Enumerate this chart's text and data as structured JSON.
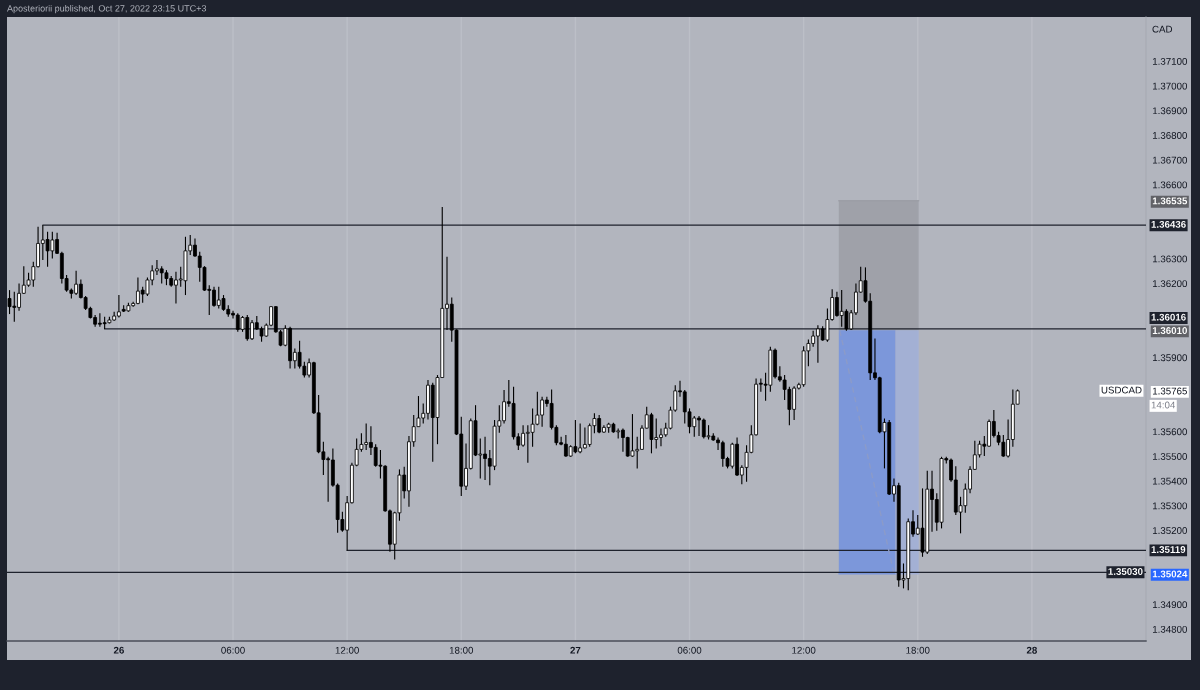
{
  "chart_data": {
    "type": "candlestick",
    "title": "Aposteriorii published, Oct 27, 2022 23:15 UTC+3",
    "ylabel": "CAD",
    "x": [
      "2022-10-25T18:15",
      "2022-10-25T18:30",
      "2022-10-25T18:45",
      "2022-10-25T19:00",
      "2022-10-25T19:15",
      "2022-10-25T19:30",
      "2022-10-25T19:45",
      "2022-10-25T20:00",
      "2022-10-25T20:15",
      "2022-10-25T20:30",
      "2022-10-25T20:45",
      "2022-10-25T21:00",
      "2022-10-25T21:15",
      "2022-10-25T21:30",
      "2022-10-25T21:45",
      "2022-10-25T22:00",
      "2022-10-25T22:15",
      "2022-10-25T22:30",
      "2022-10-25T22:45",
      "2022-10-25T23:00",
      "2022-10-25T23:15",
      "2022-10-25T23:30",
      "2022-10-25T23:45",
      "2022-10-26T00:00",
      "2022-10-26T00:15",
      "2022-10-26T00:30",
      "2022-10-26T00:45",
      "2022-10-26T01:00",
      "2022-10-26T01:15",
      "2022-10-26T01:30",
      "2022-10-26T01:45",
      "2022-10-26T02:00",
      "2022-10-26T02:15",
      "2022-10-26T02:30",
      "2022-10-26T02:45",
      "2022-10-26T03:00",
      "2022-10-26T03:15",
      "2022-10-26T03:30",
      "2022-10-26T03:45",
      "2022-10-26T04:00",
      "2022-10-26T04:15",
      "2022-10-26T04:30",
      "2022-10-26T04:45",
      "2022-10-26T05:00",
      "2022-10-26T05:15",
      "2022-10-26T05:30",
      "2022-10-26T05:45",
      "2022-10-26T06:00",
      "2022-10-26T06:15",
      "2022-10-26T06:30",
      "2022-10-26T06:45",
      "2022-10-26T07:00",
      "2022-10-26T07:15",
      "2022-10-26T07:30",
      "2022-10-26T07:45",
      "2022-10-26T08:00",
      "2022-10-26T08:15",
      "2022-10-26T08:30",
      "2022-10-26T08:45",
      "2022-10-26T09:00",
      "2022-10-26T09:15",
      "2022-10-26T09:30",
      "2022-10-26T09:45",
      "2022-10-26T10:00",
      "2022-10-26T10:15",
      "2022-10-26T10:30",
      "2022-10-26T10:45",
      "2022-10-26T11:00",
      "2022-10-26T11:15",
      "2022-10-26T11:30",
      "2022-10-26T11:45",
      "2022-10-26T12:00",
      "2022-10-26T12:15",
      "2022-10-26T12:30",
      "2022-10-26T12:45",
      "2022-10-26T13:00",
      "2022-10-26T13:15",
      "2022-10-26T13:30",
      "2022-10-26T13:45",
      "2022-10-26T14:00",
      "2022-10-26T14:15",
      "2022-10-26T14:30",
      "2022-10-26T14:45",
      "2022-10-26T15:00",
      "2022-10-26T15:15",
      "2022-10-26T15:30",
      "2022-10-26T15:45",
      "2022-10-26T16:00",
      "2022-10-26T16:15",
      "2022-10-26T16:30",
      "2022-10-26T16:45",
      "2022-10-26T17:00",
      "2022-10-26T17:15",
      "2022-10-26T17:30",
      "2022-10-26T17:45",
      "2022-10-26T18:00",
      "2022-10-26T18:15",
      "2022-10-26T18:30",
      "2022-10-26T18:45",
      "2022-10-26T19:00",
      "2022-10-26T19:15",
      "2022-10-26T19:30",
      "2022-10-26T19:45",
      "2022-10-26T20:00",
      "2022-10-26T20:15",
      "2022-10-26T20:30",
      "2022-10-26T20:45",
      "2022-10-26T21:00",
      "2022-10-26T21:15",
      "2022-10-26T21:30",
      "2022-10-26T21:45",
      "2022-10-26T22:00",
      "2022-10-26T22:15",
      "2022-10-26T22:30",
      "2022-10-26T22:45",
      "2022-10-26T23:00",
      "2022-10-26T23:15",
      "2022-10-26T23:30",
      "2022-10-26T23:45",
      "2022-10-27T00:00",
      "2022-10-27T00:15",
      "2022-10-27T00:30",
      "2022-10-27T00:45",
      "2022-10-27T01:00",
      "2022-10-27T01:15",
      "2022-10-27T01:30",
      "2022-10-27T01:45",
      "2022-10-27T02:00",
      "2022-10-27T02:15",
      "2022-10-27T02:30",
      "2022-10-27T02:45",
      "2022-10-27T03:00",
      "2022-10-27T03:15",
      "2022-10-27T03:30",
      "2022-10-27T03:45",
      "2022-10-27T04:00",
      "2022-10-27T04:15",
      "2022-10-27T04:30",
      "2022-10-27T04:45",
      "2022-10-27T05:00",
      "2022-10-27T05:15",
      "2022-10-27T05:30",
      "2022-10-27T05:45",
      "2022-10-27T06:00",
      "2022-10-27T06:15",
      "2022-10-27T06:30",
      "2022-10-27T06:45",
      "2022-10-27T07:00",
      "2022-10-27T07:15",
      "2022-10-27T07:30",
      "2022-10-27T07:45",
      "2022-10-27T08:00",
      "2022-10-27T08:15",
      "2022-10-27T08:30",
      "2022-10-27T08:45",
      "2022-10-27T09:00",
      "2022-10-27T09:15",
      "2022-10-27T09:30",
      "2022-10-27T09:45",
      "2022-10-27T10:00",
      "2022-10-27T10:15",
      "2022-10-27T10:30",
      "2022-10-27T10:45",
      "2022-10-27T11:00",
      "2022-10-27T11:15",
      "2022-10-27T11:30",
      "2022-10-27T11:45",
      "2022-10-27T12:00",
      "2022-10-27T12:15",
      "2022-10-27T12:30",
      "2022-10-27T12:45",
      "2022-10-27T13:00",
      "2022-10-27T13:15",
      "2022-10-27T13:30",
      "2022-10-27T13:45",
      "2022-10-27T14:00",
      "2022-10-27T14:15",
      "2022-10-27T14:30",
      "2022-10-27T14:45",
      "2022-10-27T15:00",
      "2022-10-27T15:15",
      "2022-10-27T15:30",
      "2022-10-27T15:45",
      "2022-10-27T16:00",
      "2022-10-27T16:15",
      "2022-10-27T16:30",
      "2022-10-27T16:45",
      "2022-10-27T17:00",
      "2022-10-27T17:15",
      "2022-10-27T17:30",
      "2022-10-27T17:45",
      "2022-10-27T18:00",
      "2022-10-27T18:15",
      "2022-10-27T18:30",
      "2022-10-27T18:45",
      "2022-10-27T19:00",
      "2022-10-27T19:15",
      "2022-10-27T19:30",
      "2022-10-27T19:45",
      "2022-10-27T20:00",
      "2022-10-27T20:15",
      "2022-10-27T20:30",
      "2022-10-27T20:45",
      "2022-10-27T21:00",
      "2022-10-27T21:15",
      "2022-10-27T21:30",
      "2022-10-27T21:45",
      "2022-10-27T22:00",
      "2022-10-27T22:15",
      "2022-10-27T22:30",
      "2022-10-27T22:45",
      "2022-10-27T23:00",
      "2022-10-27T23:15"
    ],
    "ohlc": [
      [
        1.36139,
        1.36173,
        1.36076,
        1.36106
      ],
      [
        1.36108,
        1.36166,
        1.36045,
        1.36103
      ],
      [
        1.36103,
        1.362,
        1.36089,
        1.3616
      ],
      [
        1.3616,
        1.3627,
        1.36157,
        1.36193
      ],
      [
        1.36193,
        1.36243,
        1.36187,
        1.36214
      ],
      [
        1.36214,
        1.36288,
        1.36187,
        1.36268
      ],
      [
        1.36268,
        1.3643,
        1.36265,
        1.36362
      ],
      [
        1.36362,
        1.36436,
        1.36295,
        1.36376
      ],
      [
        1.36378,
        1.36409,
        1.36268,
        1.36332
      ],
      [
        1.36332,
        1.36409,
        1.36301,
        1.36376
      ],
      [
        1.36378,
        1.36405,
        1.36319,
        1.36322
      ],
      [
        1.36322,
        1.36328,
        1.362,
        1.3622
      ],
      [
        1.3622,
        1.36234,
        1.36166,
        1.36173
      ],
      [
        1.36173,
        1.3618,
        1.36139,
        1.3616
      ],
      [
        1.3616,
        1.36251,
        1.36153,
        1.36197
      ],
      [
        1.36197,
        1.36216,
        1.36139,
        1.36143
      ],
      [
        1.36143,
        1.36149,
        1.36092,
        1.36099
      ],
      [
        1.36099,
        1.36106,
        1.36058,
        1.36062
      ],
      [
        1.36062,
        1.36072,
        1.36025,
        1.36035
      ],
      [
        1.36039,
        1.36079,
        1.36025,
        1.36035
      ],
      [
        1.36038,
        1.36065,
        1.36016,
        1.36037
      ],
      [
        1.36041,
        1.36065,
        1.36038,
        1.36052
      ],
      [
        1.36052,
        1.36085,
        1.36049,
        1.36068
      ],
      [
        1.36068,
        1.36153,
        1.36062,
        1.36085
      ],
      [
        1.36095,
        1.36112,
        1.36084,
        1.36088
      ],
      [
        1.36089,
        1.36122,
        1.36085,
        1.3611
      ],
      [
        1.3611,
        1.36126,
        1.36106,
        1.36119
      ],
      [
        1.36119,
        1.36224,
        1.36116,
        1.36169
      ],
      [
        1.36173,
        1.36187,
        1.36122,
        1.36157
      ],
      [
        1.36157,
        1.36224,
        1.36149,
        1.36214
      ],
      [
        1.36214,
        1.36274,
        1.36193,
        1.36251
      ],
      [
        1.36251,
        1.36295,
        1.36234,
        1.36259
      ],
      [
        1.36259,
        1.3627,
        1.362,
        1.36243
      ],
      [
        1.36243,
        1.36254,
        1.36193,
        1.3622
      ],
      [
        1.3622,
        1.3623,
        1.36187,
        1.36193
      ],
      [
        1.36193,
        1.36247,
        1.36119,
        1.36214
      ],
      [
        1.36214,
        1.36268,
        1.36187,
        1.36216
      ],
      [
        1.36211,
        1.36389,
        1.36153,
        1.36332
      ],
      [
        1.36332,
        1.36396,
        1.36315,
        1.36355
      ],
      [
        1.36355,
        1.36382,
        1.36308,
        1.36311
      ],
      [
        1.36311,
        1.36328,
        1.36207,
        1.36265
      ],
      [
        1.36265,
        1.3627,
        1.3617,
        1.36173
      ],
      [
        1.36174,
        1.36193,
        1.36072,
        1.36172
      ],
      [
        1.36173,
        1.36187,
        1.36106,
        1.36111
      ],
      [
        1.36111,
        1.36187,
        1.36099,
        1.36133
      ],
      [
        1.36139,
        1.36153,
        1.36089,
        1.36095
      ],
      [
        1.36095,
        1.36112,
        1.36065,
        1.36076
      ],
      [
        1.36079,
        1.36089,
        1.36058,
        1.36072
      ],
      [
        1.36072,
        1.36079,
        1.36004,
        1.36014
      ],
      [
        1.36014,
        1.36068,
        1.36004,
        1.36062
      ],
      [
        1.36062,
        1.36072,
        1.35968,
        1.35976
      ],
      [
        1.35976,
        1.36052,
        1.35971,
        1.36041
      ],
      [
        1.36041,
        1.36068,
        1.36011,
        1.36016
      ],
      [
        1.36016,
        1.36025,
        1.35964,
        1.35987
      ],
      [
        1.35987,
        1.36038,
        1.35984,
        1.36031
      ],
      [
        1.36031,
        1.36108,
        1.36027,
        1.36106
      ],
      [
        1.36106,
        1.36108,
        1.36,
        1.36004
      ],
      [
        1.36004,
        1.36011,
        1.35946,
        1.3595
      ],
      [
        1.3595,
        1.36031,
        1.35946,
        1.36018
      ],
      [
        1.36018,
        1.36025,
        1.35856,
        1.35887
      ],
      [
        1.35887,
        1.35937,
        1.35856,
        1.35921
      ],
      [
        1.35921,
        1.35968,
        1.35856,
        1.35865
      ],
      [
        1.35865,
        1.35883,
        1.35819,
        1.35829
      ],
      [
        1.35829,
        1.35896,
        1.35819,
        1.35879
      ],
      [
        1.35879,
        1.35883,
        1.35671,
        1.35676
      ],
      [
        1.35676,
        1.35748,
        1.35512,
        1.35518
      ],
      [
        1.35518,
        1.35559,
        1.35424,
        1.35487
      ],
      [
        1.35489,
        1.35498,
        1.35316,
        1.35486
      ],
      [
        1.35485,
        1.35532,
        1.35377,
        1.35383
      ],
      [
        1.35383,
        1.3539,
        1.3519,
        1.35244
      ],
      [
        1.35244,
        1.35275,
        1.35194,
        1.35201
      ],
      [
        1.35201,
        1.35339,
        1.35119,
        1.35312
      ],
      [
        1.35312,
        1.35474,
        1.35309,
        1.35464
      ],
      [
        1.35464,
        1.35572,
        1.3546,
        1.35528
      ],
      [
        1.35528,
        1.35593,
        1.35518,
        1.35548
      ],
      [
        1.35548,
        1.35633,
        1.35525,
        1.35556
      ],
      [
        1.35556,
        1.35622,
        1.35505,
        1.35536
      ],
      [
        1.35536,
        1.35549,
        1.35458,
        1.35463
      ],
      [
        1.35463,
        1.35525,
        1.3541,
        1.3546
      ],
      [
        1.3546,
        1.35464,
        1.35275,
        1.35279
      ],
      [
        1.35279,
        1.35285,
        1.35113,
        1.35144
      ],
      [
        1.35144,
        1.35275,
        1.35082,
        1.35271
      ],
      [
        1.35271,
        1.35447,
        1.35239,
        1.35424
      ],
      [
        1.35424,
        1.35458,
        1.35329,
        1.3536
      ],
      [
        1.3536,
        1.35582,
        1.35296,
        1.35559
      ],
      [
        1.35559,
        1.35667,
        1.35539,
        1.3562
      ],
      [
        1.3562,
        1.35744,
        1.3562,
        1.35655
      ],
      [
        1.35655,
        1.35714,
        1.35633,
        1.35674
      ],
      [
        1.35674,
        1.35809,
        1.35649,
        1.35788
      ],
      [
        1.35788,
        1.35798,
        1.35478,
        1.35657
      ],
      [
        1.35657,
        1.35829,
        1.35549,
        1.35819
      ],
      [
        1.35819,
        1.3651,
        1.35819,
        1.36099
      ],
      [
        1.36099,
        1.36308,
        1.36011,
        1.36116
      ],
      [
        1.36116,
        1.36143,
        1.35964,
        1.36011
      ],
      [
        1.36011,
        1.36014,
        1.35586,
        1.3559
      ],
      [
        1.3559,
        1.3566,
        1.35339,
        1.35379
      ],
      [
        1.35379,
        1.35552,
        1.35363,
        1.35451
      ],
      [
        1.35451,
        1.35653,
        1.35447,
        1.35644
      ],
      [
        1.35644,
        1.35707,
        1.35501,
        1.35505
      ],
      [
        1.35505,
        1.35572,
        1.3541,
        1.35509
      ],
      [
        1.35509,
        1.35579,
        1.35404,
        1.35491
      ],
      [
        1.35491,
        1.35525,
        1.35383,
        1.3546
      ],
      [
        1.3546,
        1.35647,
        1.35444,
        1.35622
      ],
      [
        1.35622,
        1.35707,
        1.35595,
        1.35644
      ],
      [
        1.35644,
        1.35768,
        1.35633,
        1.35721
      ],
      [
        1.35721,
        1.35809,
        1.35701,
        1.35714
      ],
      [
        1.35714,
        1.35782,
        1.35568,
        1.35579
      ],
      [
        1.35579,
        1.35593,
        1.35525,
        1.35545
      ],
      [
        1.35545,
        1.35626,
        1.35539,
        1.35593
      ],
      [
        1.35593,
        1.35626,
        1.35474,
        1.35597
      ],
      [
        1.35597,
        1.35694,
        1.35539,
        1.3563
      ],
      [
        1.3563,
        1.35761,
        1.35626,
        1.35667
      ],
      [
        1.35667,
        1.35741,
        1.3562,
        1.35728
      ],
      [
        1.35728,
        1.35741,
        1.35701,
        1.35714
      ],
      [
        1.35714,
        1.35771,
        1.35609,
        1.35617
      ],
      [
        1.35617,
        1.35626,
        1.35545,
        1.35555
      ],
      [
        1.35555,
        1.35579,
        1.35545,
        1.35549
      ],
      [
        1.35549,
        1.35586,
        1.35498,
        1.35501
      ],
      [
        1.35501,
        1.35545,
        1.35498,
        1.35539
      ],
      [
        1.35539,
        1.35647,
        1.35512,
        1.35518
      ],
      [
        1.35518,
        1.35633,
        1.35512,
        1.35534
      ],
      [
        1.35534,
        1.35617,
        1.35532,
        1.35548
      ],
      [
        1.35548,
        1.35633,
        1.35539,
        1.35624
      ],
      [
        1.35624,
        1.35674,
        1.35593,
        1.35653
      ],
      [
        1.35653,
        1.35667,
        1.35593,
        1.35598
      ],
      [
        1.35598,
        1.35626,
        1.35595,
        1.35617
      ],
      [
        1.35617,
        1.35636,
        1.35595,
        1.3563
      ],
      [
        1.3563,
        1.35636,
        1.35595,
        1.35599
      ],
      [
        1.35599,
        1.35613,
        1.35572,
        1.35601
      ],
      [
        1.35606,
        1.35613,
        1.35518,
        1.35576
      ],
      [
        1.35576,
        1.35579,
        1.35498,
        1.35501
      ],
      [
        1.35501,
        1.35671,
        1.35498,
        1.35522
      ],
      [
        1.35522,
        1.35579,
        1.35451,
        1.35528
      ],
      [
        1.35528,
        1.35626,
        1.35528,
        1.35614
      ],
      [
        1.35614,
        1.35701,
        1.35613,
        1.35668
      ],
      [
        1.35668,
        1.35676,
        1.35512,
        1.35568
      ],
      [
        1.35568,
        1.35653,
        1.35532,
        1.35576
      ],
      [
        1.35576,
        1.35613,
        1.35541,
        1.35587
      ],
      [
        1.35587,
        1.35636,
        1.35579,
        1.35614
      ],
      [
        1.35614,
        1.35701,
        1.35609,
        1.35687
      ],
      [
        1.35687,
        1.35788,
        1.3568,
        1.35765
      ],
      [
        1.35765,
        1.35806,
        1.35741,
        1.35761
      ],
      [
        1.35761,
        1.35768,
        1.35633,
        1.3568
      ],
      [
        1.3568,
        1.35694,
        1.35593,
        1.3562
      ],
      [
        1.3562,
        1.35663,
        1.35579,
        1.35655
      ],
      [
        1.35655,
        1.35663,
        1.35582,
        1.35647
      ],
      [
        1.35647,
        1.35653,
        1.35572,
        1.35579
      ],
      [
        1.35579,
        1.35626,
        1.35568,
        1.35582
      ],
      [
        1.35582,
        1.35593,
        1.35563,
        1.35566
      ],
      [
        1.35566,
        1.35576,
        1.35525,
        1.35555
      ],
      [
        1.35555,
        1.35563,
        1.35458,
        1.35491
      ],
      [
        1.35491,
        1.35498,
        1.35451,
        1.3546
      ],
      [
        1.3546,
        1.35555,
        1.35451,
        1.35549
      ],
      [
        1.35549,
        1.35576,
        1.3542,
        1.35424
      ],
      [
        1.35424,
        1.35464,
        1.35387,
        1.35455
      ],
      [
        1.35455,
        1.35545,
        1.35397,
        1.35516
      ],
      [
        1.35516,
        1.35626,
        1.35512,
        1.35587
      ],
      [
        1.35587,
        1.35815,
        1.35584,
        1.35792
      ],
      [
        1.35795,
        1.35815,
        1.35761,
        1.35792
      ],
      [
        1.35792,
        1.35838,
        1.35725,
        1.35788
      ],
      [
        1.35788,
        1.35944,
        1.35761,
        1.3593
      ],
      [
        1.3593,
        1.35937,
        1.35815,
        1.35822
      ],
      [
        1.35822,
        1.35865,
        1.35802,
        1.35809
      ],
      [
        1.35809,
        1.35829,
        1.35728,
        1.35771
      ],
      [
        1.35771,
        1.35782,
        1.35626,
        1.3569
      ],
      [
        1.3569,
        1.35784,
        1.35647,
        1.35776
      ],
      [
        1.35776,
        1.35798,
        1.35771,
        1.3579
      ],
      [
        1.3579,
        1.35946,
        1.35782,
        1.35927
      ],
      [
        1.35927,
        1.35973,
        1.35865,
        1.35957
      ],
      [
        1.35957,
        1.36008,
        1.35944,
        1.35987
      ],
      [
        1.35987,
        1.36031,
        1.35879,
        1.36016
      ],
      [
        1.36016,
        1.36027,
        1.35968,
        1.35971
      ],
      [
        1.35971,
        1.36099,
        1.35964,
        1.36054
      ],
      [
        1.36054,
        1.36176,
        1.36049,
        1.36143
      ],
      [
        1.36143,
        1.36166,
        1.36065,
        1.3607
      ],
      [
        1.3607,
        1.36173,
        1.36025,
        1.36087
      ],
      [
        1.36087,
        1.36095,
        1.36008,
        1.36016
      ],
      [
        1.36016,
        1.36092,
        1.36011,
        1.36081
      ],
      [
        1.36081,
        1.362,
        1.36072,
        1.36165
      ],
      [
        1.36165,
        1.36268,
        1.36162,
        1.36211
      ],
      [
        1.36211,
        1.36265,
        1.36122,
        1.36128
      ],
      [
        1.36128,
        1.3616,
        1.35809,
        1.35838
      ],
      [
        1.35838,
        1.35977,
        1.35809,
        1.35818
      ],
      [
        1.35818,
        1.35822,
        1.35593,
        1.35599
      ],
      [
        1.35599,
        1.35653,
        1.35451,
        1.35637
      ],
      [
        1.35637,
        1.35647,
        1.35343,
        1.35347
      ],
      [
        1.35347,
        1.3541,
        1.35316,
        1.35381
      ],
      [
        1.35381,
        1.35393,
        1.34972,
        1.34999
      ],
      [
        1.34999,
        1.35066,
        1.34965,
        1.35005
      ],
      [
        1.35005,
        1.35248,
        1.34958,
        1.35235
      ],
      [
        1.35235,
        1.35282,
        1.35174,
        1.35185
      ],
      [
        1.35185,
        1.35262,
        1.35181,
        1.35209
      ],
      [
        1.35209,
        1.3537,
        1.35093,
        1.35112
      ],
      [
        1.35112,
        1.35441,
        1.35104,
        1.35367
      ],
      [
        1.35367,
        1.35441,
        1.35194,
        1.35325
      ],
      [
        1.35325,
        1.3535,
        1.35198,
        1.35233
      ],
      [
        1.35233,
        1.35498,
        1.35208,
        1.35491
      ],
      [
        1.35491,
        1.35498,
        1.35471,
        1.35485
      ],
      [
        1.35485,
        1.35491,
        1.35397,
        1.35404
      ],
      [
        1.35404,
        1.3546,
        1.35262,
        1.35274
      ],
      [
        1.35274,
        1.35336,
        1.35188,
        1.353
      ],
      [
        1.353,
        1.3539,
        1.35271,
        1.35367
      ],
      [
        1.35367,
        1.3546,
        1.3535,
        1.35447
      ],
      [
        1.35447,
        1.35563,
        1.35444,
        1.35506
      ],
      [
        1.35506,
        1.35563,
        1.35495,
        1.35549
      ],
      [
        1.35549,
        1.35582,
        1.35501,
        1.35541
      ],
      [
        1.35541,
        1.35649,
        1.35539,
        1.35641
      ],
      [
        1.35641,
        1.35687,
        1.35576,
        1.35584
      ],
      [
        1.35584,
        1.35599,
        1.35545,
        1.35557
      ],
      [
        1.35557,
        1.35586,
        1.35498,
        1.35501
      ],
      [
        1.35501,
        1.35649,
        1.35495,
        1.35568
      ],
      [
        1.35568,
        1.35771,
        1.35539,
        1.35711
      ],
      [
        1.35711,
        1.35771,
        1.35711,
        1.35765
      ]
    ],
    "xlim": [
      "2022-10-25T18:07",
      "2022-10-28T06:00"
    ],
    "xticks": [
      {
        "value": "2022-10-26T00:00",
        "label": "26"
      },
      {
        "value": "2022-10-26T06:00",
        "label": "06:00"
      },
      {
        "value": "2022-10-26T12:00",
        "label": "12:00"
      },
      {
        "value": "2022-10-26T18:00",
        "label": "18:00"
      },
      {
        "value": "2022-10-27T00:00",
        "label": "27"
      },
      {
        "value": "2022-10-27T06:00",
        "label": "06:00"
      },
      {
        "value": "2022-10-27T12:00",
        "label": "12:00"
      },
      {
        "value": "2022-10-27T18:00",
        "label": "18:00"
      },
      {
        "value": "2022-10-28T00:00",
        "label": "28"
      }
    ],
    "ylim": [
      1.34752,
      1.37279
    ],
    "yticks": [
      {
        "value": 1.348,
        "label": "1.34800"
      },
      {
        "value": 1.349,
        "label": "1.34900"
      },
      {
        "value": 1.35024,
        "label": "1.35024"
      },
      {
        "value": 1.352,
        "label": "1.35200"
      },
      {
        "value": 1.353,
        "label": "1.35300"
      },
      {
        "value": 1.354,
        "label": "1.35400"
      },
      {
        "value": 1.355,
        "label": "1.35500"
      },
      {
        "value": 1.356,
        "label": "1.35600"
      },
      {
        "value": 1.35765,
        "label": "1.35765"
      },
      {
        "value": 1.359,
        "label": "1.35900"
      },
      {
        "value": 1.3601,
        "label": "1.36010"
      },
      {
        "value": 1.362,
        "label": "1.36200"
      },
      {
        "value": 1.363,
        "label": "1.36300"
      },
      {
        "value": 1.36535,
        "label": "1.36535"
      },
      {
        "value": 1.366,
        "label": "1.36600"
      },
      {
        "value": 1.367,
        "label": "1.36700"
      },
      {
        "value": 1.368,
        "label": "1.36800"
      },
      {
        "value": 1.369,
        "label": "1.36900"
      },
      {
        "value": 1.37,
        "label": "1.37000"
      },
      {
        "value": 1.371,
        "label": "1.37100"
      }
    ],
    "grid": "x",
    "series": [
      {
        "type": "line",
        "x": [
          "2022-10-25T20:00",
          "2022-10-28T06:00"
        ],
        "values": [
          1.36436,
          1.36436
        ],
        "color": "#1e222d",
        "value_labels": [
          null,
          "1.36436"
        ]
      },
      {
        "type": "line",
        "x": [
          "2022-10-25T23:15",
          "2022-10-28T06:00"
        ],
        "values": [
          1.36016,
          1.36016
        ],
        "color": "#1e222d",
        "value_labels": [
          null,
          "1.36016"
        ]
      },
      {
        "type": "line",
        "x": [
          "2022-10-26T12:00",
          "2022-10-28T06:00"
        ],
        "values": [
          1.35119,
          1.35119
        ],
        "color": "#1e222d",
        "value_labels": [
          null,
          "1.35119"
        ]
      },
      {
        "type": "line",
        "x": [
          "2022-10-27T13:51",
          "2022-10-27T18:03"
        ],
        "values": [
          1.36535,
          1.36535
        ],
        "lower": [
          1.3601,
          1.3601
        ],
        "upper": [
          1.36535,
          1.36535
        ],
        "color": "#9c9ea6"
      },
      {
        "type": "line",
        "x": [
          "2022-10-27T13:51",
          "2022-10-27T16:50"
        ],
        "values": [
          1.35024,
          1.35024
        ],
        "lower": [
          1.35024,
          1.35024
        ],
        "upper": [
          1.3601,
          1.3601
        ],
        "color": "#7694dd"
      },
      {
        "type": "line",
        "x": [
          "2022-10-27T16:50",
          "2022-10-27T18:03"
        ],
        "values": [
          1.35024,
          1.35024
        ],
        "lower": [
          1.35024,
          1.35024
        ],
        "upper": [
          1.3601,
          1.3601
        ],
        "color": "#a1afd6"
      },
      {
        "type": "line",
        "x": [
          "2022-10-27T13:54",
          "2022-10-27T16:45"
        ],
        "values": [
          1.3601,
          1.35024
        ],
        "color": "#8c9bc8",
        "line_style": "dashed"
      }
    ],
    "ref_lines": [
      {
        "axis": "y",
        "value": 1.3503,
        "label": "1.35030",
        "color": "#1e222d"
      }
    ],
    "annotations": [
      "USDCAD",
      "14:04"
    ]
  }
}
